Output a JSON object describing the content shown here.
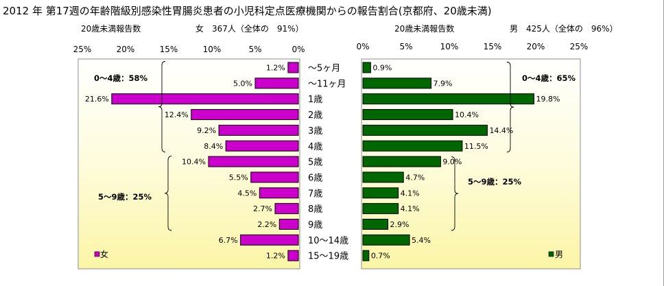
{
  "title": "2012 年 第17週の年齢階級別感染性胃腸炎患者の小児科定点医療機関からの報告割合(京都府、20歳未満)",
  "female": {
    "header_label": "20歳未満報告数",
    "header_stat": "女　367人（全体の　91%）",
    "legend": "女",
    "color": "#cc00cc",
    "group_labels": [
      "0～4歳：58%",
      "5～9歳：25%"
    ]
  },
  "male": {
    "header_label": "20歳未満報告数",
    "header_stat": "男　425人（全体の　96%）",
    "legend": "男",
    "color": "#006600",
    "group_labels": [
      "0～4歳：65%",
      "5～9歳：25%"
    ]
  },
  "chart_data": {
    "type": "bar",
    "orientation": "horizontal",
    "layout": "population-pyramid",
    "categories": [
      "～5ヶ月",
      "～11ヶ月",
      "1歳",
      "2歳",
      "3歳",
      "4歳",
      "5歳",
      "6歳",
      "7歳",
      "8歳",
      "9歳",
      "10～14歳",
      "15～19歳"
    ],
    "series": [
      {
        "name": "女",
        "values": [
          1.2,
          5.0,
          21.6,
          12.4,
          9.2,
          8.4,
          10.4,
          5.5,
          4.5,
          2.7,
          2.2,
          6.7,
          1.2
        ]
      },
      {
        "name": "男",
        "values": [
          0.9,
          7.9,
          19.8,
          10.4,
          14.4,
          11.5,
          9.0,
          4.7,
          4.1,
          4.1,
          2.9,
          5.4,
          0.7
        ]
      }
    ],
    "xlim": [
      0,
      25
    ],
    "x_ticks": [
      "0%",
      "5%",
      "10%",
      "15%",
      "20%",
      "25%"
    ],
    "value_unit": "%",
    "grid": false,
    "legend_position": "bottom-left / bottom-right"
  }
}
